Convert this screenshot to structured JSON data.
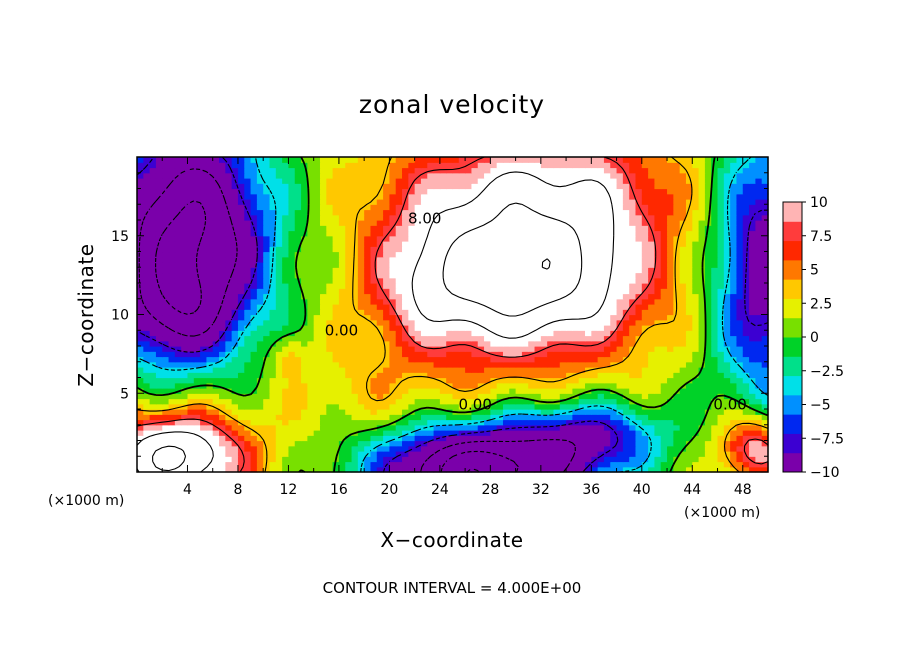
{
  "chart_data": {
    "type": "heatmap",
    "title": "zonal velocity",
    "xlabel": "X−coordinate",
    "ylabel": "Z−coordinate",
    "x_units_left": "(×1000 m)",
    "x_units_right": "(×1000 m)",
    "footer": "CONTOUR INTERVAL = 4.000E+00",
    "xlim": [
      0,
      50
    ],
    "ylim": [
      0,
      20
    ],
    "x_ticks": [
      4,
      8,
      12,
      16,
      20,
      24,
      28,
      32,
      36,
      40,
      44,
      48
    ],
    "y_ticks": [
      5,
      10,
      15
    ],
    "x_tick_labels": [
      "4",
      "8",
      "12",
      "16",
      "20",
      "24",
      "28",
      "32",
      "36",
      "40",
      "44",
      "48"
    ],
    "y_tick_labels": [
      "5",
      "10",
      "15"
    ],
    "colorbar": {
      "vmin": -10,
      "vmax": 10,
      "ticks": [
        10,
        7.5,
        5,
        2.5,
        0,
        -2.5,
        -5,
        -7.5,
        -10
      ],
      "tick_labels": [
        "10",
        "7.5",
        "5",
        "2.5",
        "0",
        "−2.5",
        "−5",
        "−7.5",
        "−10"
      ],
      "colors": [
        "#7a00aa",
        "#3c00d2",
        "#0028f0",
        "#0090ff",
        "#00e0e8",
        "#00e08a",
        "#00d228",
        "#78e000",
        "#e6f000",
        "#ffc800",
        "#ff7800",
        "#ff2800",
        "#ff3c3c",
        "#ffb4b4"
      ]
    },
    "contour_interval": 4.0,
    "contour_labels": [
      {
        "text": "8.00",
        "x": 22.8,
        "z": 16.1
      },
      {
        "text": "0.00",
        "x": 16.2,
        "z": 9.0
      },
      {
        "text": "0.00",
        "x": 26.8,
        "z": 4.3
      },
      {
        "text": "0.00",
        "x": 47.0,
        "z": 4.3
      }
    ],
    "features": [
      {
        "name": "jet-core",
        "kind": "gauss",
        "x": 29.5,
        "z": 12.5,
        "sx": 6.5,
        "sz": 3.6,
        "amp": 17
      },
      {
        "name": "jet-upper",
        "kind": "gauss",
        "x": 30,
        "z": 18.5,
        "sx": 8,
        "sz": 2.5,
        "amp": 6
      },
      {
        "name": "jet-right",
        "kind": "gauss",
        "x": 37,
        "z": 15,
        "sx": 5,
        "sz": 5,
        "amp": 4
      },
      {
        "name": "jet-tail",
        "kind": "gauss",
        "x": 22.5,
        "z": 12,
        "sx": 3,
        "sz": 3,
        "amp": 3
      },
      {
        "name": "west-low",
        "kind": "gauss",
        "x": 4,
        "z": 15,
        "sx": 4.5,
        "sz": 5,
        "amp": -18
      },
      {
        "name": "west-low-lower",
        "kind": "gauss",
        "x": 3,
        "z": 10,
        "sx": 3,
        "sz": 2,
        "amp": -6
      },
      {
        "name": "east-low",
        "kind": "gauss",
        "x": 50,
        "z": 13,
        "sx": 3,
        "sz": 6,
        "amp": -12
      },
      {
        "name": "bottom-low-center",
        "kind": "gauss",
        "x": 27,
        "z": 0,
        "sx": 5.5,
        "sz": 2,
        "amp": -20
      },
      {
        "name": "bottom-low-mid",
        "kind": "gauss",
        "x": 36,
        "z": 2.3,
        "sx": 4,
        "sz": 1.6,
        "amp": -9
      },
      {
        "name": "bottom-left-high",
        "kind": "gauss",
        "x": 3,
        "z": 1,
        "sx": 4,
        "sz": 2,
        "amp": 16
      },
      {
        "name": "bottom-right-high",
        "kind": "gauss",
        "x": 49,
        "z": 1.5,
        "sx": 2,
        "sz": 1.5,
        "amp": 10
      },
      {
        "name": "left-warm",
        "kind": "gauss",
        "x": 12,
        "z": 7.5,
        "sx": 1,
        "sz": 1,
        "amp": 3
      },
      {
        "name": "mid-warm",
        "kind": "gauss",
        "x": 18,
        "z": 5,
        "sx": 6,
        "sz": 2,
        "amp": 2
      },
      {
        "name": "background",
        "kind": "const",
        "amp": 1
      }
    ]
  }
}
